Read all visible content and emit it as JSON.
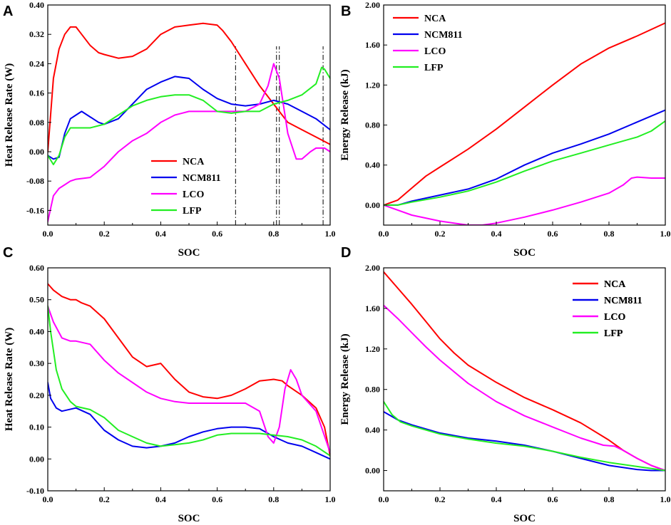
{
  "colors": {
    "NCA": "#ff0000",
    "NCM811": "#0000ee",
    "LCO": "#ff00ff",
    "LFP": "#22ee22"
  },
  "chart_data": [
    {
      "panel": "A",
      "type": "line",
      "xlabel": "SOC",
      "ylabel": "Heat Release Rate (W)",
      "xlim": [
        0,
        1
      ],
      "ylim": [
        -0.2,
        0.4
      ],
      "xticks": [
        "0.0",
        "0.2",
        "0.4",
        "0.6",
        "0.8",
        "1.0"
      ],
      "xtick_values": [
        0,
        0.2,
        0.4,
        0.6,
        0.8,
        1.0
      ],
      "yticks": [
        "-0.16",
        "-0.08",
        "0.00",
        "0.08",
        "0.16",
        "0.24",
        "0.32",
        "0.40"
      ],
      "ytick_values": [
        -0.16,
        -0.08,
        0.0,
        0.08,
        0.16,
        0.24,
        0.32,
        0.4
      ],
      "legend_position": "lower-center",
      "vlines": [
        0.665,
        0.81,
        0.82,
        0.975
      ],
      "series": [
        {
          "name": "NCA",
          "x": [
            0,
            0.02,
            0.04,
            0.06,
            0.08,
            0.1,
            0.12,
            0.15,
            0.18,
            0.2,
            0.25,
            0.3,
            0.35,
            0.4,
            0.45,
            0.5,
            0.55,
            0.6,
            0.62,
            0.65,
            0.7,
            0.75,
            0.8,
            0.85,
            0.9,
            0.95,
            1.0
          ],
          "values": [
            0.0,
            0.2,
            0.28,
            0.32,
            0.34,
            0.34,
            0.32,
            0.29,
            0.27,
            0.265,
            0.255,
            0.26,
            0.28,
            0.32,
            0.34,
            0.345,
            0.35,
            0.345,
            0.33,
            0.3,
            0.24,
            0.18,
            0.13,
            0.08,
            0.06,
            0.04,
            0.02
          ]
        },
        {
          "name": "NCM811",
          "x": [
            0,
            0.02,
            0.04,
            0.06,
            0.08,
            0.1,
            0.12,
            0.15,
            0.18,
            0.2,
            0.25,
            0.3,
            0.35,
            0.4,
            0.45,
            0.5,
            0.55,
            0.6,
            0.65,
            0.7,
            0.75,
            0.8,
            0.85,
            0.9,
            0.95,
            1.0
          ],
          "values": [
            -0.01,
            -0.02,
            -0.015,
            0.05,
            0.09,
            0.1,
            0.11,
            0.095,
            0.08,
            0.075,
            0.09,
            0.13,
            0.17,
            0.19,
            0.205,
            0.2,
            0.17,
            0.145,
            0.13,
            0.125,
            0.13,
            0.14,
            0.13,
            0.11,
            0.09,
            0.06
          ]
        },
        {
          "name": "LCO",
          "x": [
            0,
            0.02,
            0.04,
            0.06,
            0.08,
            0.1,
            0.15,
            0.2,
            0.25,
            0.3,
            0.35,
            0.4,
            0.45,
            0.5,
            0.55,
            0.6,
            0.65,
            0.7,
            0.75,
            0.78,
            0.8,
            0.82,
            0.85,
            0.88,
            0.9,
            0.93,
            0.95,
            0.98,
            1.0
          ],
          "values": [
            -0.19,
            -0.12,
            -0.1,
            -0.09,
            -0.08,
            -0.075,
            -0.07,
            -0.04,
            0.0,
            0.03,
            0.05,
            0.08,
            0.1,
            0.11,
            0.11,
            0.11,
            0.11,
            0.11,
            0.13,
            0.18,
            0.24,
            0.2,
            0.05,
            -0.02,
            -0.02,
            0.0,
            0.01,
            0.01,
            0.0
          ]
        },
        {
          "name": "LFP",
          "x": [
            0,
            0.02,
            0.04,
            0.06,
            0.08,
            0.1,
            0.15,
            0.2,
            0.25,
            0.3,
            0.35,
            0.4,
            0.45,
            0.5,
            0.55,
            0.6,
            0.65,
            0.7,
            0.75,
            0.8,
            0.85,
            0.9,
            0.95,
            0.97,
            0.98,
            1.0
          ],
          "values": [
            -0.01,
            -0.035,
            -0.01,
            0.04,
            0.065,
            0.065,
            0.065,
            0.075,
            0.1,
            0.125,
            0.14,
            0.15,
            0.155,
            0.155,
            0.14,
            0.11,
            0.105,
            0.11,
            0.11,
            0.13,
            0.14,
            0.155,
            0.185,
            0.23,
            0.225,
            0.2
          ]
        }
      ]
    },
    {
      "panel": "B",
      "type": "line",
      "xlabel": "SOC",
      "ylabel": "Energy Release (kJ)",
      "xlim": [
        0,
        1
      ],
      "ylim": [
        -0.2,
        2.0
      ],
      "xticks": [
        "0.0",
        "0.2",
        "0.4",
        "0.6",
        "0.8",
        "1.0"
      ],
      "xtick_values": [
        0,
        0.2,
        0.4,
        0.6,
        0.8,
        1.0
      ],
      "yticks": [
        "0.00",
        "0.40",
        "0.80",
        "1.20",
        "1.60",
        "2.00"
      ],
      "ytick_values": [
        0.0,
        0.4,
        0.8,
        1.2,
        1.6,
        2.0
      ],
      "legend_position": "top-left",
      "vlines": [],
      "series": [
        {
          "name": "NCA",
          "x": [
            0,
            0.05,
            0.1,
            0.15,
            0.2,
            0.3,
            0.4,
            0.5,
            0.6,
            0.7,
            0.8,
            0.9,
            1.0
          ],
          "values": [
            0.0,
            0.05,
            0.17,
            0.29,
            0.38,
            0.56,
            0.76,
            0.98,
            1.2,
            1.41,
            1.57,
            1.69,
            1.82
          ]
        },
        {
          "name": "NCM811",
          "x": [
            0,
            0.05,
            0.1,
            0.2,
            0.3,
            0.4,
            0.5,
            0.6,
            0.7,
            0.8,
            0.9,
            1.0
          ],
          "values": [
            0.0,
            0.0,
            0.04,
            0.1,
            0.16,
            0.26,
            0.4,
            0.52,
            0.61,
            0.71,
            0.83,
            0.95
          ]
        },
        {
          "name": "LCO",
          "x": [
            0,
            0.05,
            0.1,
            0.2,
            0.3,
            0.35,
            0.4,
            0.5,
            0.6,
            0.7,
            0.8,
            0.85,
            0.88,
            0.9,
            0.95,
            1.0
          ],
          "values": [
            0.0,
            -0.05,
            -0.1,
            -0.16,
            -0.2,
            -0.2,
            -0.18,
            -0.12,
            -0.05,
            0.03,
            0.12,
            0.2,
            0.27,
            0.28,
            0.27,
            0.27
          ]
        },
        {
          "name": "LFP",
          "x": [
            0,
            0.05,
            0.1,
            0.2,
            0.3,
            0.4,
            0.5,
            0.6,
            0.7,
            0.8,
            0.9,
            0.95,
            1.0
          ],
          "values": [
            0.0,
            0.0,
            0.03,
            0.08,
            0.14,
            0.23,
            0.34,
            0.44,
            0.52,
            0.6,
            0.68,
            0.74,
            0.84
          ]
        }
      ]
    },
    {
      "panel": "C",
      "type": "line",
      "xlabel": "SOC",
      "ylabel": "Heat Release Rate (W)",
      "xlim": [
        0,
        1
      ],
      "ylim": [
        -0.1,
        0.6
      ],
      "xticks": [
        "0.0",
        "0.2",
        "0.4",
        "0.6",
        "0.8",
        "1.0"
      ],
      "xtick_values": [
        0,
        0.2,
        0.4,
        0.6,
        0.8,
        1.0
      ],
      "yticks": [
        "-0.10",
        "0.00",
        "0.10",
        "0.20",
        "0.30",
        "0.40",
        "0.50",
        "0.60"
      ],
      "ytick_values": [
        -0.1,
        0.0,
        0.1,
        0.2,
        0.3,
        0.4,
        0.5,
        0.6
      ],
      "legend_position": "top-right",
      "vlines": [],
      "series": [
        {
          "name": "NCA",
          "x": [
            0,
            0.02,
            0.05,
            0.08,
            0.1,
            0.12,
            0.15,
            0.2,
            0.25,
            0.3,
            0.35,
            0.4,
            0.45,
            0.5,
            0.55,
            0.6,
            0.65,
            0.7,
            0.75,
            0.8,
            0.83,
            0.85,
            0.9,
            0.95,
            0.98,
            1.0
          ],
          "values": [
            0.55,
            0.53,
            0.51,
            0.5,
            0.5,
            0.49,
            0.48,
            0.44,
            0.38,
            0.32,
            0.29,
            0.3,
            0.25,
            0.21,
            0.195,
            0.19,
            0.2,
            0.22,
            0.245,
            0.25,
            0.245,
            0.23,
            0.2,
            0.16,
            0.1,
            0.01
          ]
        },
        {
          "name": "NCM811",
          "x": [
            0,
            0.01,
            0.03,
            0.05,
            0.1,
            0.15,
            0.2,
            0.25,
            0.3,
            0.35,
            0.4,
            0.45,
            0.5,
            0.55,
            0.6,
            0.65,
            0.7,
            0.75,
            0.8,
            0.85,
            0.9,
            0.95,
            1.0
          ],
          "values": [
            0.24,
            0.19,
            0.16,
            0.15,
            0.16,
            0.14,
            0.09,
            0.06,
            0.04,
            0.035,
            0.04,
            0.05,
            0.07,
            0.085,
            0.095,
            0.1,
            0.1,
            0.095,
            0.07,
            0.05,
            0.04,
            0.02,
            0.0
          ]
        },
        {
          "name": "LCO",
          "x": [
            0,
            0.02,
            0.05,
            0.08,
            0.1,
            0.15,
            0.2,
            0.25,
            0.3,
            0.35,
            0.4,
            0.45,
            0.5,
            0.55,
            0.6,
            0.65,
            0.7,
            0.75,
            0.78,
            0.8,
            0.82,
            0.84,
            0.86,
            0.88,
            0.9,
            0.95,
            1.0
          ],
          "values": [
            0.48,
            0.43,
            0.38,
            0.37,
            0.37,
            0.36,
            0.31,
            0.27,
            0.24,
            0.21,
            0.19,
            0.18,
            0.175,
            0.175,
            0.175,
            0.175,
            0.175,
            0.15,
            0.07,
            0.05,
            0.1,
            0.22,
            0.28,
            0.25,
            0.2,
            0.15,
            0.02
          ]
        },
        {
          "name": "LFP",
          "x": [
            0,
            0.01,
            0.03,
            0.05,
            0.08,
            0.1,
            0.15,
            0.2,
            0.25,
            0.3,
            0.35,
            0.4,
            0.45,
            0.5,
            0.55,
            0.6,
            0.65,
            0.7,
            0.75,
            0.8,
            0.85,
            0.9,
            0.95,
            1.0
          ],
          "values": [
            0.48,
            0.4,
            0.28,
            0.22,
            0.18,
            0.165,
            0.155,
            0.13,
            0.09,
            0.07,
            0.05,
            0.04,
            0.045,
            0.05,
            0.06,
            0.075,
            0.08,
            0.08,
            0.08,
            0.075,
            0.07,
            0.06,
            0.04,
            0.01
          ]
        }
      ]
    },
    {
      "panel": "D",
      "type": "line",
      "xlabel": "SOC",
      "ylabel": "Energy Release (kJ)",
      "xlim": [
        0,
        1
      ],
      "ylim": [
        -0.2,
        2.0
      ],
      "xticks": [
        "0.0",
        "0.2",
        "0.4",
        "0.6",
        "0.8",
        "1.0"
      ],
      "xtick_values": [
        0,
        0.2,
        0.4,
        0.6,
        0.8,
        1.0
      ],
      "yticks": [
        "0.00",
        "0.40",
        "0.80",
        "1.20",
        "1.60",
        "2.00"
      ],
      "ytick_values": [
        0.0,
        0.4,
        0.8,
        1.2,
        1.6,
        2.0
      ],
      "legend_position": "top-right",
      "vlines": [],
      "series": [
        {
          "name": "NCA",
          "x": [
            0,
            0.05,
            0.1,
            0.15,
            0.2,
            0.25,
            0.3,
            0.4,
            0.5,
            0.6,
            0.7,
            0.8,
            0.85,
            0.9,
            0.95,
            1.0
          ],
          "values": [
            1.96,
            1.8,
            1.64,
            1.47,
            1.3,
            1.16,
            1.04,
            0.87,
            0.72,
            0.6,
            0.47,
            0.3,
            0.2,
            0.12,
            0.05,
            0.0
          ]
        },
        {
          "name": "NCM811",
          "x": [
            0,
            0.05,
            0.1,
            0.2,
            0.3,
            0.4,
            0.5,
            0.6,
            0.7,
            0.8,
            0.9,
            0.95,
            1.0
          ],
          "values": [
            0.58,
            0.5,
            0.45,
            0.37,
            0.32,
            0.29,
            0.25,
            0.19,
            0.12,
            0.05,
            0.01,
            0.0,
            0.0
          ]
        },
        {
          "name": "LCO",
          "x": [
            0,
            0.05,
            0.1,
            0.15,
            0.2,
            0.3,
            0.4,
            0.5,
            0.6,
            0.7,
            0.78,
            0.82,
            0.85,
            0.9,
            0.95,
            1.0
          ],
          "values": [
            1.63,
            1.5,
            1.36,
            1.22,
            1.09,
            0.86,
            0.68,
            0.54,
            0.43,
            0.32,
            0.25,
            0.24,
            0.2,
            0.12,
            0.05,
            0.0
          ]
        },
        {
          "name": "LFP",
          "x": [
            0,
            0.03,
            0.06,
            0.1,
            0.2,
            0.3,
            0.4,
            0.5,
            0.6,
            0.7,
            0.8,
            0.9,
            1.0
          ],
          "values": [
            0.68,
            0.55,
            0.48,
            0.44,
            0.36,
            0.31,
            0.27,
            0.24,
            0.19,
            0.13,
            0.08,
            0.04,
            0.0
          ]
        }
      ]
    }
  ]
}
